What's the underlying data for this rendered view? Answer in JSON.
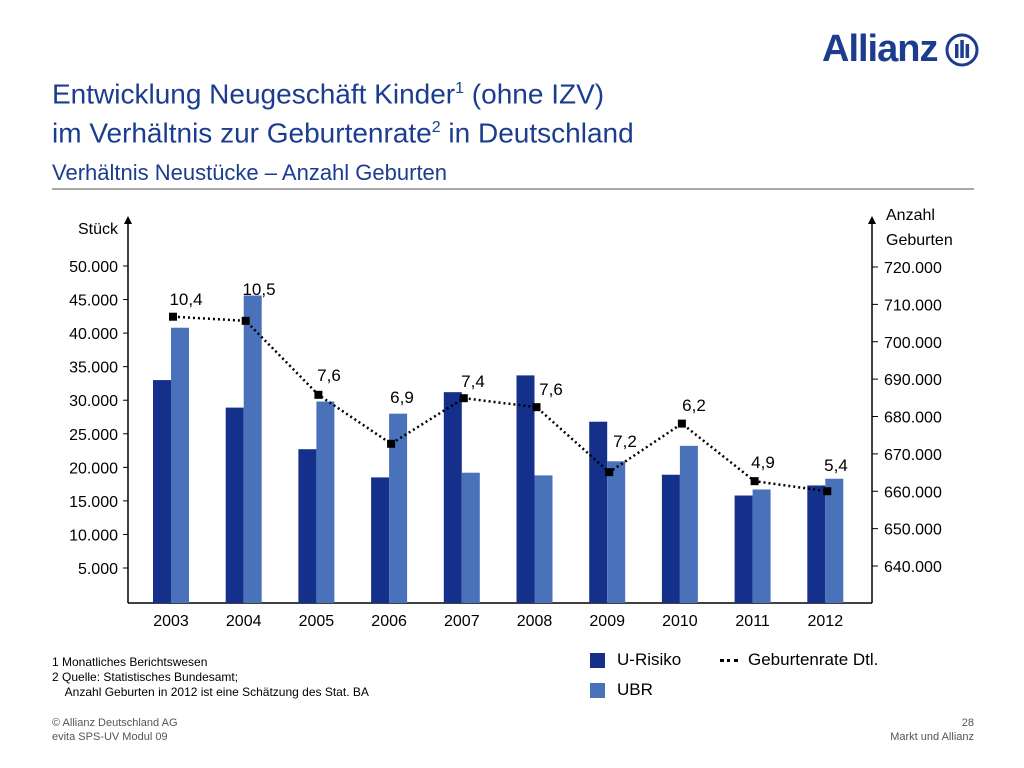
{
  "brand": {
    "logo_text": "Allianz",
    "color": "#1b3c8f"
  },
  "title": {
    "line1_main": "Entwicklung Neugeschäft Kinder",
    "line1_sup": "1",
    "line1_rest": " (ohne IZV)",
    "line2_main": "im Verhältnis zur Geburtenrate",
    "line2_sup": "2",
    "line2_rest": " in Deutschland"
  },
  "subtitle": "Verhältnis Neustücke – Anzahl Geburten",
  "chart_data": {
    "type": "bar",
    "categories": [
      "2003",
      "2004",
      "2005",
      "2006",
      "2007",
      "2008",
      "2009",
      "2010",
      "2011",
      "2012"
    ],
    "ylabel_left": "Stück",
    "ylabel_right_line1": "Anzahl",
    "ylabel_right_line2": "Geburten",
    "left_axis": {
      "ticks": [
        5000,
        10000,
        15000,
        20000,
        25000,
        30000,
        35000,
        40000,
        45000,
        50000
      ],
      "tick_labels": [
        "5.000",
        "10.000",
        "15.000",
        "20.000",
        "25.000",
        "30.000",
        "35.000",
        "40.000",
        "45.000",
        "50.000"
      ]
    },
    "right_axis": {
      "ticks": [
        640000,
        650000,
        660000,
        670000,
        680000,
        690000,
        700000,
        710000,
        720000
      ],
      "tick_labels": [
        "640.000",
        "650.000",
        "660.000",
        "670.000",
        "680.000",
        "690.000",
        "700.000",
        "710.000",
        "720.000"
      ]
    },
    "series": [
      {
        "name": "U-Risiko",
        "color": "#15308a",
        "values": [
          33000,
          28900,
          22700,
          18500,
          31200,
          33700,
          26800,
          18900,
          15800,
          17300
        ]
      },
      {
        "name": "UBR",
        "color": "#4a72ba",
        "values": [
          40800,
          45600,
          29800,
          28000,
          19200,
          18800,
          20900,
          23200,
          16700,
          18300
        ]
      }
    ],
    "line_series": {
      "name": "Geburtenrate Dtl.",
      "style": "dotted",
      "births": [
        706700,
        705600,
        685800,
        672700,
        684900,
        682500,
        665100,
        678100,
        662700,
        660000
      ],
      "labels": [
        "10,4",
        "10,5",
        "7,6",
        "6,9",
        "7,4",
        "7,6",
        "7,2",
        "6,2",
        "4,9",
        "5,4"
      ]
    },
    "legend_position": "bottom-right"
  },
  "footnotes": [
    "1  Monatliches Berichtswesen",
    "2  Quelle: Statistisches Bundesamt;",
    "    Anzahl Geburten in 2012 ist eine Schätzung des Stat. BA"
  ],
  "footer": {
    "copyright": "© Allianz Deutschland AG",
    "module": "evita SPS-UV Modul 09",
    "page_number": "28",
    "section": "Markt und Allianz"
  }
}
